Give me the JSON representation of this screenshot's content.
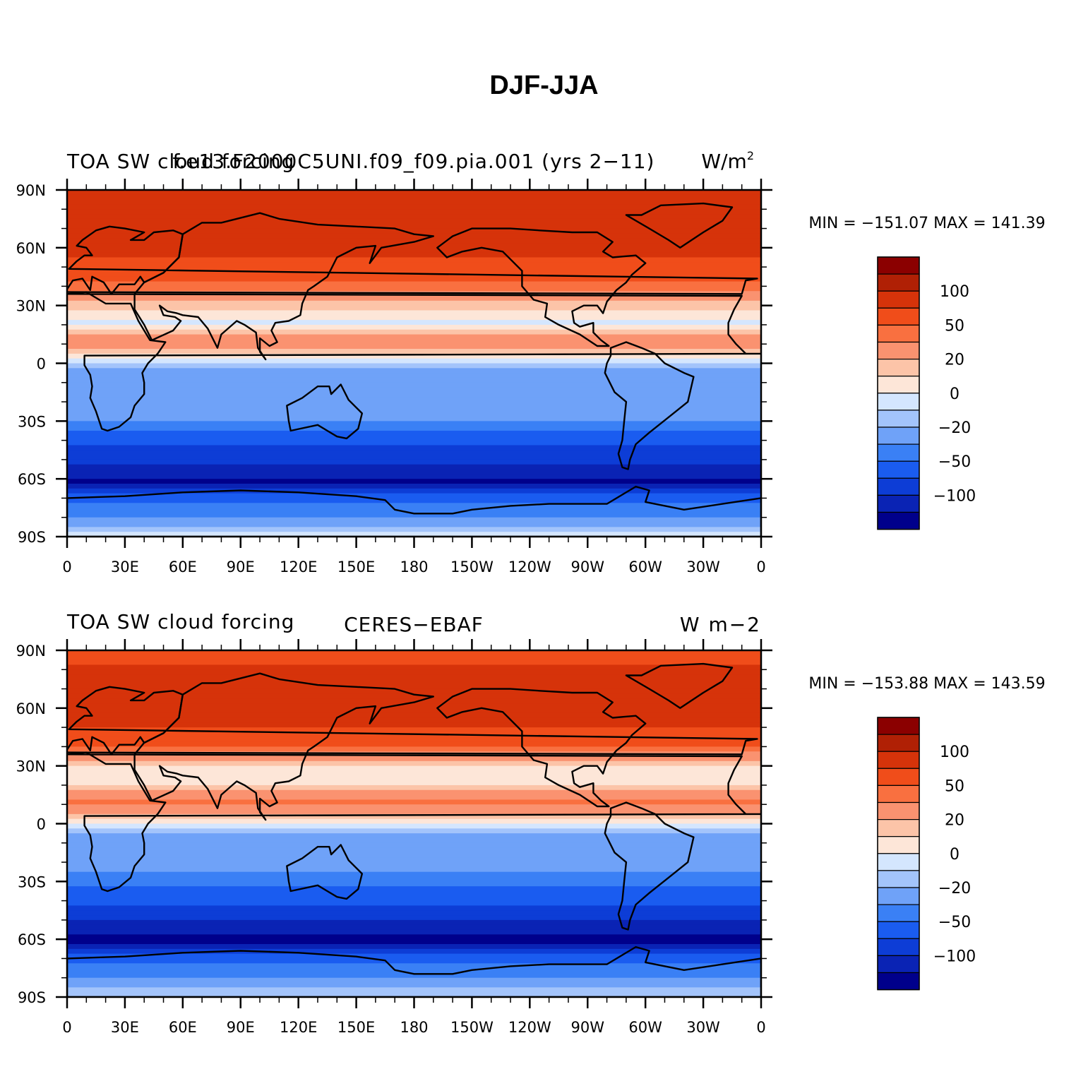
{
  "figure_title": "DJF-JJA",
  "colors": {
    "levels": [
      "#00008b",
      "#0a23b4",
      "#0d3dd6",
      "#1a5cf0",
      "#3a80f5",
      "#6fa2f8",
      "#a3c4fb",
      "#d4e6fe",
      "#fde6d8",
      "#fcc4a8",
      "#fa9270",
      "#f97040",
      "#f04d1a",
      "#d6330a",
      "#b02005",
      "#8b0000"
    ],
    "coast": "#000000",
    "frame": "#000000"
  },
  "colorbar_labels": [
    "100",
    "50",
    "20",
    "0",
    "−20",
    "−50",
    "−100"
  ],
  "chart_data": [
    {
      "type": "heatmap",
      "title_left": "TOA SW cloud forcing",
      "title_center": "f.e13.F2000C5UNI.f09_f09.pia.001 (yrs 2−11)",
      "units": "W/m",
      "units_exp": "2",
      "min_max_text": "MIN = −151.07 MAX = 141.39",
      "min": -151.07,
      "max": 141.39,
      "contour_levels": [
        -125,
        -100,
        -75,
        -50,
        -35,
        -20,
        -10,
        0,
        10,
        20,
        35,
        50,
        75,
        100,
        125
      ],
      "lat_ticks": [
        "90N",
        "60N",
        "30N",
        "0",
        "30S",
        "60S",
        "90S"
      ],
      "lon_ticks": [
        "0",
        "30E",
        "60E",
        "90E",
        "120E",
        "150E",
        "180",
        "150W",
        "120W",
        "90W",
        "60W",
        "30W",
        "0"
      ],
      "zonal_profile_wm2": [
        {
          "lat": 90,
          "value": 80
        },
        {
          "lat": 75,
          "value": 95
        },
        {
          "lat": 60,
          "value": 80
        },
        {
          "lat": 45,
          "value": 60
        },
        {
          "lat": 30,
          "value": 15
        },
        {
          "lat": 20,
          "value": -5
        },
        {
          "lat": 10,
          "value": 35
        },
        {
          "lat": 0,
          "value": -15
        },
        {
          "lat": -10,
          "value": -30
        },
        {
          "lat": -20,
          "value": -25
        },
        {
          "lat": -30,
          "value": -35
        },
        {
          "lat": -45,
          "value": -80
        },
        {
          "lat": -55,
          "value": -110
        },
        {
          "lat": -62,
          "value": -130
        },
        {
          "lat": -70,
          "value": -60
        },
        {
          "lat": -90,
          "value": -5
        }
      ]
    },
    {
      "type": "heatmap",
      "title_left": "TOA SW cloud forcing",
      "title_center": "CERES−EBAF",
      "units": "W m−2",
      "units_exp": "",
      "min_max_text": "MIN = −153.88 MAX = 143.59",
      "min": -153.88,
      "max": 143.59,
      "contour_levels": [
        -125,
        -100,
        -75,
        -50,
        -35,
        -20,
        -10,
        0,
        10,
        20,
        35,
        50,
        75,
        100,
        125
      ],
      "lat_ticks": [
        "90N",
        "60N",
        "30N",
        "0",
        "30S",
        "60S",
        "90S"
      ],
      "lon_ticks": [
        "0",
        "30E",
        "60E",
        "90E",
        "120E",
        "150E",
        "180",
        "150W",
        "120W",
        "90W",
        "60W",
        "30W",
        "0"
      ],
      "zonal_profile_wm2": [
        {
          "lat": 90,
          "value": 60
        },
        {
          "lat": 75,
          "value": 90
        },
        {
          "lat": 60,
          "value": 85
        },
        {
          "lat": 45,
          "value": 70
        },
        {
          "lat": 30,
          "value": 5
        },
        {
          "lat": 20,
          "value": 10
        },
        {
          "lat": 10,
          "value": 40
        },
        {
          "lat": 0,
          "value": -5
        },
        {
          "lat": -10,
          "value": -35
        },
        {
          "lat": -20,
          "value": -30
        },
        {
          "lat": -30,
          "value": -40
        },
        {
          "lat": -45,
          "value": -85
        },
        {
          "lat": -55,
          "value": -115
        },
        {
          "lat": -62,
          "value": -135
        },
        {
          "lat": -70,
          "value": -55
        },
        {
          "lat": -90,
          "value": -10
        }
      ]
    }
  ]
}
